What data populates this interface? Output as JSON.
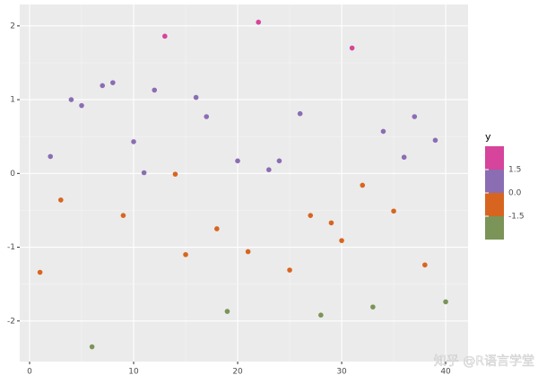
{
  "chart_data": {
    "type": "scatter",
    "x": [
      1,
      2,
      3,
      4,
      5,
      6,
      7,
      8,
      9,
      10,
      11,
      12,
      13,
      14,
      15,
      16,
      17,
      18,
      19,
      20,
      21,
      22,
      23,
      24,
      25,
      26,
      27,
      28,
      29,
      30,
      31,
      32,
      33,
      34,
      35,
      36,
      37,
      38,
      39,
      40
    ],
    "values": [
      -1.34,
      0.23,
      -0.36,
      1.0,
      0.92,
      -2.35,
      1.19,
      1.23,
      -0.57,
      0.43,
      0.01,
      1.13,
      1.86,
      -0.01,
      -1.1,
      1.03,
      0.77,
      -0.75,
      -1.87,
      0.17,
      -1.06,
      2.05,
      0.05,
      0.17,
      -1.31,
      0.81,
      -0.57,
      -1.92,
      -0.67,
      -0.91,
      1.7,
      -0.16,
      -1.81,
      0.57,
      -0.51,
      0.22,
      0.77,
      -1.24,
      0.45,
      -1.74
    ],
    "xlim": [
      -0.95,
      42.15
    ],
    "ylim": [
      -2.55,
      2.29
    ],
    "xticks": [
      0,
      10,
      20,
      30,
      40
    ],
    "yticks": [
      -2,
      -1,
      0,
      1,
      2
    ],
    "grid": true,
    "legend": {
      "title": "y",
      "position": "right",
      "breaks": [
        1.5,
        {
          "value": 0,
          "label": "0.0"
        },
        -1.5
      ],
      "colors": [
        "#d6449b",
        "#8b6db3",
        "#d8651f",
        "#7b9457"
      ]
    },
    "watermark": "知乎 @R语言学堂"
  }
}
